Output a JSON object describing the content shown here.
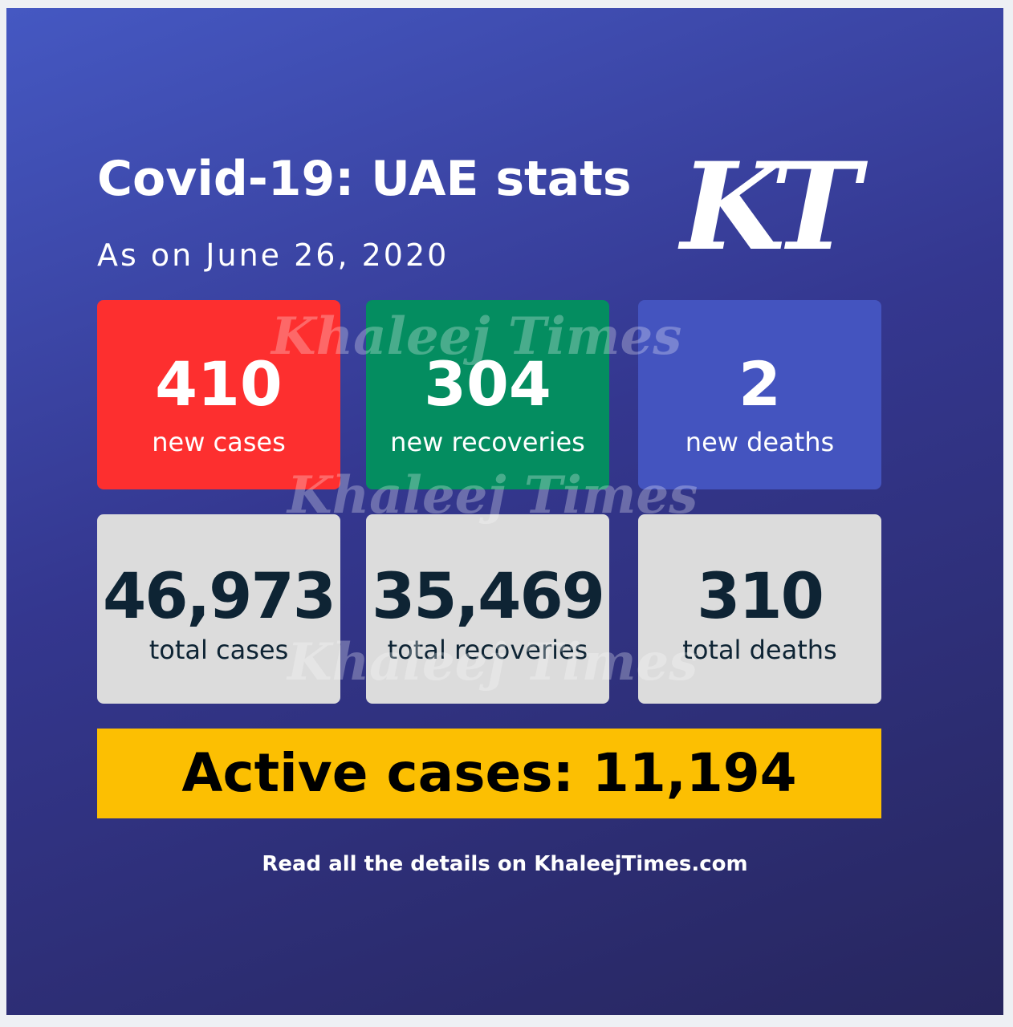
{
  "header": {
    "title": "Covid-19: UAE stats",
    "subtitle": "As on June 26, 2020",
    "logo": "KT"
  },
  "watermark": "Khaleej Times",
  "daily": [
    {
      "value": "410",
      "label": "new cases"
    },
    {
      "value": "304",
      "label": "new recoveries"
    },
    {
      "value": "2",
      "label": "new deaths"
    }
  ],
  "totals": [
    {
      "value": "46,973",
      "label": "total cases"
    },
    {
      "value": "35,469",
      "label": "total recoveries"
    },
    {
      "value": "310",
      "label": "total deaths"
    }
  ],
  "active": "Active cases: 11,194",
  "footer": "Read all the details on KhaleejTimes.com"
}
